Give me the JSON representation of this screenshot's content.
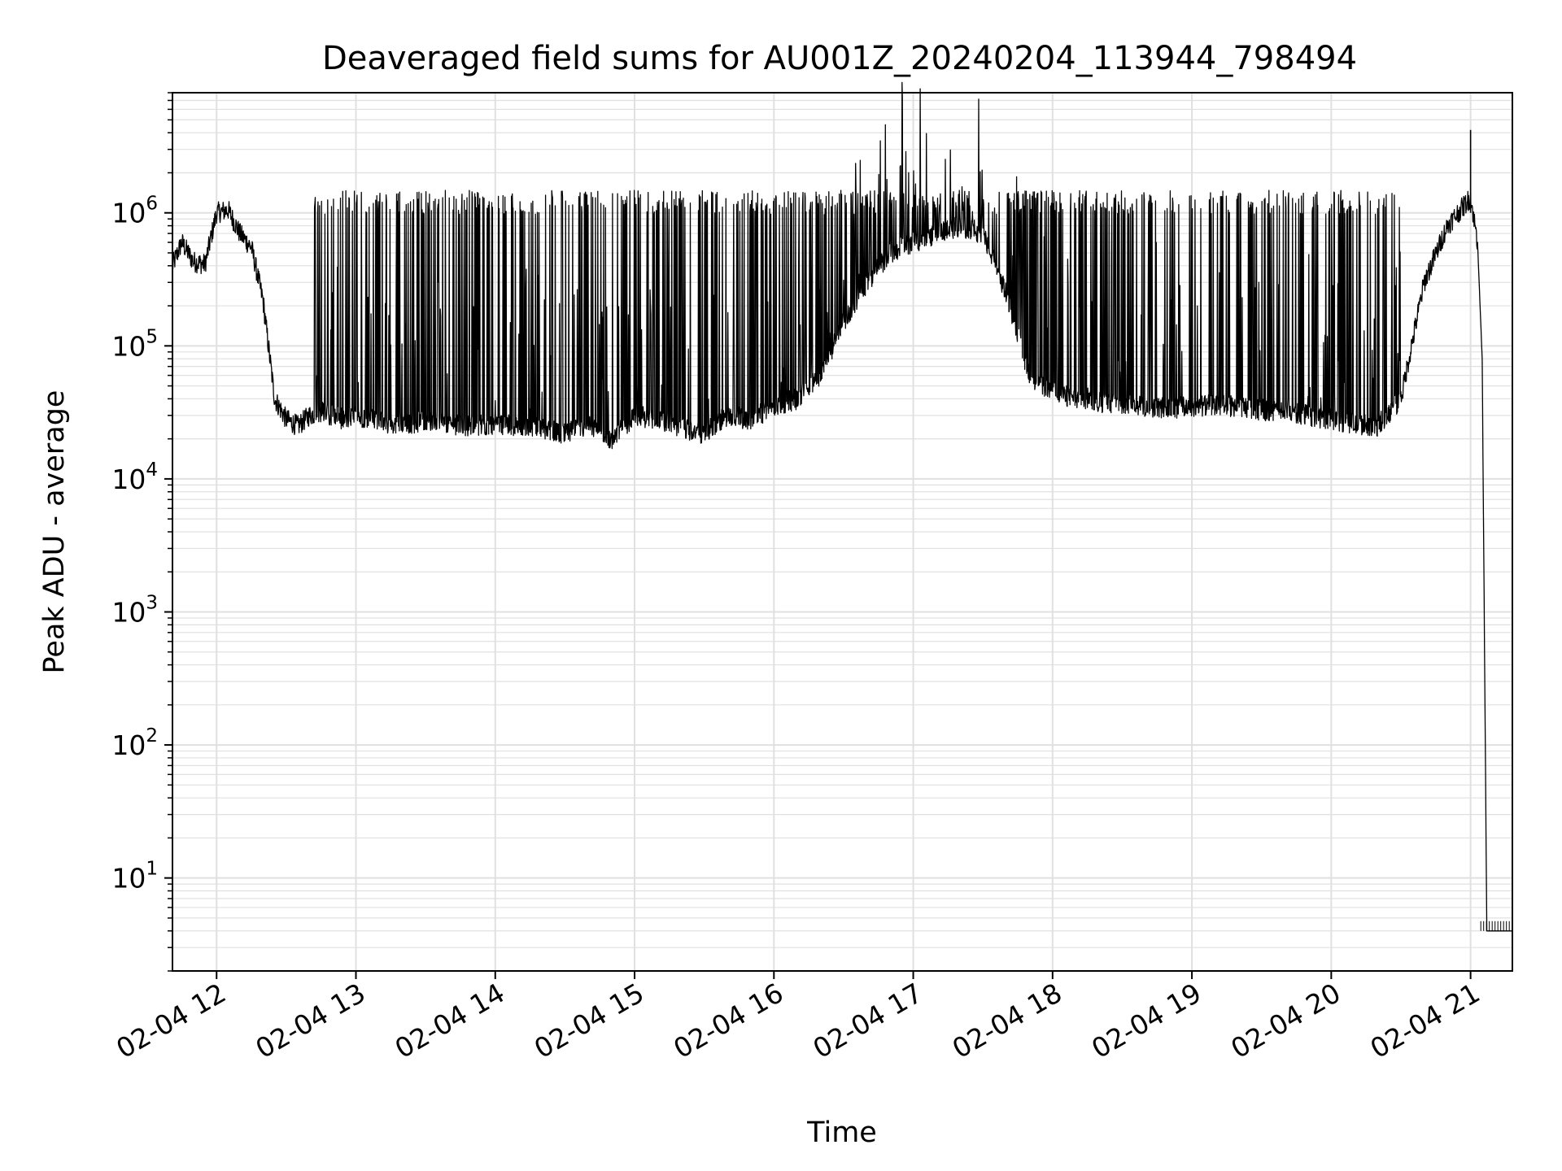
{
  "chart_data": {
    "type": "line",
    "title": "Deaveraged field sums for AU001Z_20240204_113944_798494",
    "xlabel": "Time",
    "ylabel": "Peak ADU - average",
    "yscale": "log",
    "xlim": [
      "2024-02-04T11:41",
      "2024-02-04T21:18"
    ],
    "ylim": [
      2,
      8000000
    ],
    "grid": true,
    "line_color": "#000000",
    "grid_color": "#e0e0e0",
    "x_ticks": [
      {
        "value": "2024-02-04T12:00",
        "label": "02-04 12"
      },
      {
        "value": "2024-02-04T13:00",
        "label": "02-04 13"
      },
      {
        "value": "2024-02-04T14:00",
        "label": "02-04 14"
      },
      {
        "value": "2024-02-04T15:00",
        "label": "02-04 15"
      },
      {
        "value": "2024-02-04T16:00",
        "label": "02-04 16"
      },
      {
        "value": "2024-02-04T17:00",
        "label": "02-04 17"
      },
      {
        "value": "2024-02-04T18:00",
        "label": "02-04 18"
      },
      {
        "value": "2024-02-04T19:00",
        "label": "02-04 19"
      },
      {
        "value": "2024-02-04T20:00",
        "label": "02-04 20"
      },
      {
        "value": "2024-02-04T21:00",
        "label": "02-04 21"
      }
    ],
    "y_ticks": [
      {
        "value": 10,
        "base": "10",
        "exp": "1"
      },
      {
        "value": 100,
        "base": "10",
        "exp": "2"
      },
      {
        "value": 1000,
        "base": "10",
        "exp": "3"
      },
      {
        "value": 10000,
        "base": "10",
        "exp": "4"
      },
      {
        "value": 100000,
        "base": "10",
        "exp": "5"
      },
      {
        "value": 1000000,
        "base": "10",
        "exp": "6"
      }
    ],
    "series": [
      {
        "x": [
          "2024-02-04T11:41",
          "2024-02-04T11:45",
          "2024-02-04T11:50",
          "2024-02-04T11:55",
          "2024-02-04T12:00",
          "2024-02-04T12:05",
          "2024-02-04T12:10",
          "2024-02-04T12:15",
          "2024-02-04T12:20",
          "2024-02-04T12:25",
          "2024-02-04T12:30",
          "2024-02-04T12:35",
          "2024-02-04T12:40",
          "2024-02-04T12:45",
          "2024-02-04T12:50",
          "2024-02-04T12:55",
          "2024-02-04T13:00",
          "2024-02-04T13:10",
          "2024-02-04T13:20",
          "2024-02-04T13:30",
          "2024-02-04T13:40",
          "2024-02-04T13:50",
          "2024-02-04T14:00",
          "2024-02-04T14:10",
          "2024-02-04T14:20",
          "2024-02-04T14:30",
          "2024-02-04T14:40",
          "2024-02-04T14:50",
          "2024-02-04T15:00",
          "2024-02-04T15:10",
          "2024-02-04T15:20",
          "2024-02-04T15:30",
          "2024-02-04T15:40",
          "2024-02-04T15:50",
          "2024-02-04T16:00",
          "2024-02-04T16:10",
          "2024-02-04T16:20",
          "2024-02-04T16:30",
          "2024-02-04T16:40",
          "2024-02-04T16:50",
          "2024-02-04T17:00",
          "2024-02-04T17:10",
          "2024-02-04T17:20",
          "2024-02-04T17:30",
          "2024-02-04T17:40",
          "2024-02-04T17:50",
          "2024-02-04T18:00",
          "2024-02-04T18:10",
          "2024-02-04T18:20",
          "2024-02-04T18:30",
          "2024-02-04T18:40",
          "2024-02-04T18:50",
          "2024-02-04T19:00",
          "2024-02-04T19:10",
          "2024-02-04T19:20",
          "2024-02-04T19:30",
          "2024-02-04T19:40",
          "2024-02-04T19:50",
          "2024-02-04T20:00",
          "2024-02-04T20:10",
          "2024-02-04T20:20",
          "2024-02-04T20:30",
          "2024-02-04T20:40",
          "2024-02-04T20:50",
          "2024-02-04T21:00",
          "2024-02-04T21:03",
          "2024-02-04T21:05",
          "2024-02-04T21:07",
          "2024-02-04T21:18"
        ],
        "y": [
          400000,
          600000,
          430000,
          410000,
          1000000,
          1050000,
          700000,
          550000,
          220000,
          40000,
          28000,
          25000,
          30000,
          32000,
          30000,
          28000,
          30000,
          27000,
          25000,
          28000,
          26000,
          25000,
          26000,
          25000,
          24000,
          22000,
          25000,
          20000,
          30000,
          28000,
          24000,
          22000,
          30000,
          28000,
          35000,
          40000,
          60000,
          150000,
          300000,
          500000,
          600000,
          700000,
          800000,
          700000,
          250000,
          60000,
          45000,
          40000,
          38000,
          36000,
          35000,
          34000,
          35000,
          36000,
          35000,
          33000,
          32000,
          30000,
          28000,
          26000,
          25000,
          40000,
          300000,
          800000,
          1300000,
          600000,
          80000,
          4,
          4
        ],
        "spikes_y": 1200000
      }
    ]
  }
}
